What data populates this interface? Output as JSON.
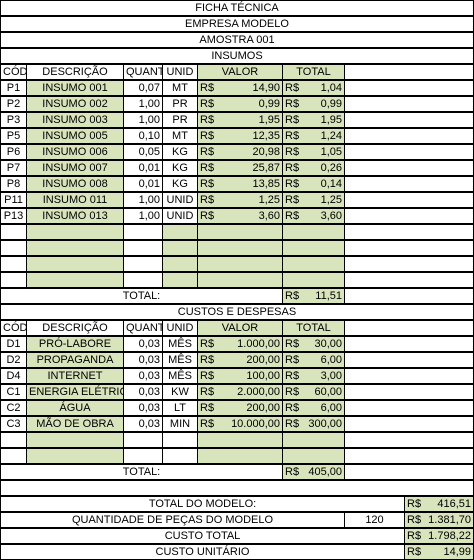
{
  "header": {
    "title": "FICHA TÉCNICA",
    "company": "EMPRESA MODELO",
    "sample": "AMOSTRA 001",
    "inputs_section": "INSUMOS"
  },
  "inputs": {
    "columns": [
      "CÓD",
      "DESCRIÇÃO",
      "QUANT",
      "UNID",
      "VALOR",
      "TOTAL"
    ],
    "rows": [
      {
        "cod": "P1",
        "desc": "INSUMO 001",
        "quant": "0,07",
        "unid": "MT",
        "valor": "14,90",
        "total": "1,04"
      },
      {
        "cod": "P2",
        "desc": "INSUMO 002",
        "quant": "1,00",
        "unid": "PR",
        "valor": "0,99",
        "total": "0,99"
      },
      {
        "cod": "P3",
        "desc": "INSUMO 003",
        "quant": "1,00",
        "unid": "PR",
        "valor": "1,95",
        "total": "1,95"
      },
      {
        "cod": "P5",
        "desc": "INSUMO 005",
        "quant": "0,10",
        "unid": "MT",
        "valor": "12,35",
        "total": "1,24"
      },
      {
        "cod": "P6",
        "desc": "INSUMO 006",
        "quant": "0,05",
        "unid": "KG",
        "valor": "20,98",
        "total": "1,05"
      },
      {
        "cod": "P7",
        "desc": "INSUMO 007",
        "quant": "0,01",
        "unid": "KG",
        "valor": "25,87",
        "total": "0,26"
      },
      {
        "cod": "P8",
        "desc": "INSUMO 008",
        "quant": "0,01",
        "unid": "KG",
        "valor": "13,85",
        "total": "0,14"
      },
      {
        "cod": "P11",
        "desc": "INSUMO 011",
        "quant": "1,00",
        "unid": "UNID",
        "valor": "1,25",
        "total": "1,25"
      },
      {
        "cod": "P13",
        "desc": "INSUMO 013",
        "quant": "1,00",
        "unid": "UNID",
        "valor": "3,60",
        "total": "3,60"
      }
    ],
    "total_label": "TOTAL:",
    "total_value": "11,51"
  },
  "currency": "R$",
  "costs": {
    "section": "CUSTOS E DESPESAS",
    "columns": [
      "CÓD",
      "DESCRIÇÃO",
      "QUANT",
      "UNID",
      "VALOR",
      "TOTAL"
    ],
    "rows": [
      {
        "cod": "D1",
        "desc": "PRÓ-LABORE",
        "quant": "0,03",
        "unid": "MÊS",
        "valor": "1.000,00",
        "total": "30,00"
      },
      {
        "cod": "D2",
        "desc": "PROPAGANDA",
        "quant": "0,03",
        "unid": "MÊS",
        "valor": "200,00",
        "total": "6,00"
      },
      {
        "cod": "D4",
        "desc": "INTERNET",
        "quant": "0,03",
        "unid": "MÊS",
        "valor": "100,00",
        "total": "3,00"
      },
      {
        "cod": "C1",
        "desc": "ENERGIA ELÉTRICA",
        "quant": "0,03",
        "unid": "KW",
        "valor": "2.000,00",
        "total": "60,00"
      },
      {
        "cod": "C2",
        "desc": "ÁGUA",
        "quant": "0,03",
        "unid": "LT",
        "valor": "200,00",
        "total": "6,00"
      },
      {
        "cod": "C3",
        "desc": "MÃO DE OBRA",
        "quant": "0,03",
        "unid": "MIN",
        "valor": "10.000,00",
        "total": "300,00"
      }
    ],
    "total_label": "TOTAL:",
    "total_value": "405,00"
  },
  "summary": {
    "model_total_label": "TOTAL DO MODELO:",
    "model_total_value": "416,51",
    "quantity_label": "QUANTIDADE DE PEÇAS DO MODELO",
    "quantity_value": "120",
    "quantity_amount": "1.381,70",
    "total_cost_label": "CUSTO TOTAL",
    "total_cost_value": "1.798,22",
    "unit_cost_label": "CUSTO UNITÁRIO",
    "unit_cost_value": "14,99"
  },
  "colors": {
    "input_cell": "#d8e4bc",
    "border": "#000000"
  }
}
